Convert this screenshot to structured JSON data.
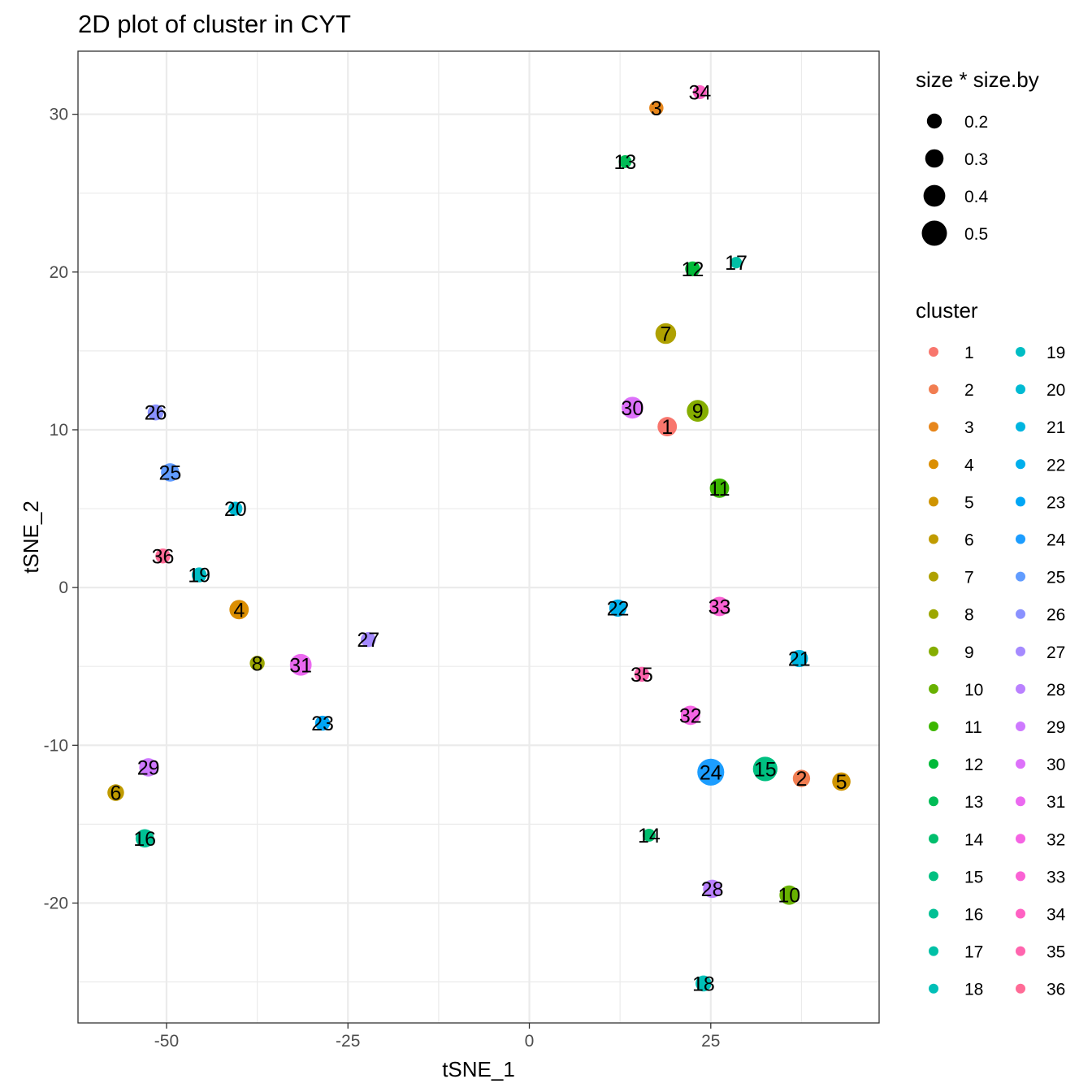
{
  "chart_data": {
    "type": "scatter",
    "title": "2D plot of cluster in CYT",
    "xlabel": "tSNE_1",
    "ylabel": "tSNE_2",
    "xlim": [
      -62.2,
      48.2
    ],
    "ylim": [
      -27.6,
      34.0
    ],
    "x_ticks": [
      -50,
      -25,
      0,
      25
    ],
    "x_tick_labels": [
      "-50",
      "-25",
      "0",
      "25"
    ],
    "y_ticks": [
      -20,
      -10,
      0,
      10,
      20,
      30
    ],
    "y_tick_labels": [
      "-20",
      "-10",
      "0",
      "10",
      "20",
      "30"
    ],
    "grid": true,
    "size_legend": {
      "title": "size * size.by",
      "entries": [
        {
          "label": "0.2",
          "value": 0.2
        },
        {
          "label": "0.3",
          "value": 0.3
        },
        {
          "label": "0.4",
          "value": 0.4
        },
        {
          "label": "0.5",
          "value": 0.5
        }
      ]
    },
    "color_legend": {
      "title": "cluster",
      "placement": "right",
      "entries": [
        {
          "label": "1",
          "color": "#F8766D"
        },
        {
          "label": "2",
          "color": "#F17D51"
        },
        {
          "label": "3",
          "color": "#E7861B"
        },
        {
          "label": "4",
          "color": "#DB8E00"
        },
        {
          "label": "5",
          "color": "#CF9400"
        },
        {
          "label": "6",
          "color": "#C09B00"
        },
        {
          "label": "7",
          "color": "#AFA100"
        },
        {
          "label": "8",
          "color": "#9CA700"
        },
        {
          "label": "9",
          "color": "#85AD00"
        },
        {
          "label": "10",
          "color": "#68B100"
        },
        {
          "label": "11",
          "color": "#3CB600"
        },
        {
          "label": "12",
          "color": "#00BA38"
        },
        {
          "label": "13",
          "color": "#00BC56"
        },
        {
          "label": "14",
          "color": "#00BE6D"
        },
        {
          "label": "15",
          "color": "#00C081"
        },
        {
          "label": "16",
          "color": "#00C094"
        },
        {
          "label": "17",
          "color": "#00C0A6"
        },
        {
          "label": "18",
          "color": "#00BFB7"
        },
        {
          "label": "19",
          "color": "#00BDC4"
        },
        {
          "label": "20",
          "color": "#00BAD3"
        },
        {
          "label": "21",
          "color": "#00B5E0"
        },
        {
          "label": "22",
          "color": "#00AFEC"
        },
        {
          "label": "23",
          "color": "#00A6F5"
        },
        {
          "label": "24",
          "color": "#1C9DFF"
        },
        {
          "label": "25",
          "color": "#619CFF"
        },
        {
          "label": "26",
          "color": "#8A91FF"
        },
        {
          "label": "27",
          "color": "#A58AFF"
        },
        {
          "label": "28",
          "color": "#BA81FF"
        },
        {
          "label": "29",
          "color": "#CE79FF"
        },
        {
          "label": "30",
          "color": "#DD71FA"
        },
        {
          "label": "31",
          "color": "#EB69F0"
        },
        {
          "label": "32",
          "color": "#F564E3"
        },
        {
          "label": "33",
          "color": "#FA62D4"
        },
        {
          "label": "34",
          "color": "#FF61C3"
        },
        {
          "label": "35",
          "color": "#FF65AE"
        },
        {
          "label": "36",
          "color": "#FF6B96"
        }
      ]
    },
    "points": [
      {
        "label": "1",
        "x": 19.0,
        "y": 10.2,
        "size": 0.33
      },
      {
        "label": "2",
        "x": 37.5,
        "y": -12.1,
        "size": 0.27
      },
      {
        "label": "3",
        "x": 17.5,
        "y": 30.4,
        "size": 0.18
      },
      {
        "label": "4",
        "x": -40.0,
        "y": -1.4,
        "size": 0.33
      },
      {
        "label": "5",
        "x": 43.0,
        "y": -12.3,
        "size": 0.3
      },
      {
        "label": "6",
        "x": -57.0,
        "y": -13.0,
        "size": 0.25
      },
      {
        "label": "7",
        "x": 18.8,
        "y": 16.1,
        "size": 0.37
      },
      {
        "label": "8",
        "x": -37.5,
        "y": -4.8,
        "size": 0.2
      },
      {
        "label": "9",
        "x": 23.2,
        "y": 11.2,
        "size": 0.4
      },
      {
        "label": "10",
        "x": 35.8,
        "y": -19.5,
        "size": 0.33
      },
      {
        "label": "11",
        "x": 26.2,
        "y": 6.3,
        "size": 0.33
      },
      {
        "label": "12",
        "x": 22.5,
        "y": 20.2,
        "size": 0.2
      },
      {
        "label": "13",
        "x": 13.2,
        "y": 27.0,
        "size": 0.14
      },
      {
        "label": "14",
        "x": 16.5,
        "y": -15.7,
        "size": 0.14
      },
      {
        "label": "15",
        "x": 32.5,
        "y": -11.5,
        "size": 0.48
      },
      {
        "label": "16",
        "x": -53.0,
        "y": -15.9,
        "size": 0.3
      },
      {
        "label": "17",
        "x": 28.5,
        "y": 20.6,
        "size": 0.1
      },
      {
        "label": "18",
        "x": 24.0,
        "y": -25.1,
        "size": 0.23
      },
      {
        "label": "19",
        "x": -45.5,
        "y": 0.8,
        "size": 0.2
      },
      {
        "label": "20",
        "x": -40.5,
        "y": 5.0,
        "size": 0.17
      },
      {
        "label": "21",
        "x": 37.2,
        "y": -4.5,
        "size": 0.27
      },
      {
        "label": "22",
        "x": 12.2,
        "y": -1.3,
        "size": 0.27
      },
      {
        "label": "23",
        "x": -28.5,
        "y": -8.6,
        "size": 0.2
      },
      {
        "label": "24",
        "x": 25.0,
        "y": -11.7,
        "size": 0.55
      },
      {
        "label": "25",
        "x": -49.5,
        "y": 7.3,
        "size": 0.3
      },
      {
        "label": "26",
        "x": -51.5,
        "y": 11.1,
        "size": 0.23
      },
      {
        "label": "27",
        "x": -22.2,
        "y": -3.3,
        "size": 0.2
      },
      {
        "label": "28",
        "x": 25.2,
        "y": -19.1,
        "size": 0.3
      },
      {
        "label": "29",
        "x": -52.5,
        "y": -11.4,
        "size": 0.3
      },
      {
        "label": "30",
        "x": 14.2,
        "y": 11.4,
        "size": 0.4
      },
      {
        "label": "31",
        "x": -31.5,
        "y": -4.9,
        "size": 0.4
      },
      {
        "label": "32",
        "x": 22.2,
        "y": -8.1,
        "size": 0.33
      },
      {
        "label": "33",
        "x": 26.2,
        "y": -1.2,
        "size": 0.33
      },
      {
        "label": "34",
        "x": 23.5,
        "y": 31.4,
        "size": 0.17
      },
      {
        "label": "35",
        "x": 15.5,
        "y": -5.5,
        "size": 0.2
      },
      {
        "label": "36",
        "x": -50.5,
        "y": 2.0,
        "size": 0.2
      }
    ]
  }
}
